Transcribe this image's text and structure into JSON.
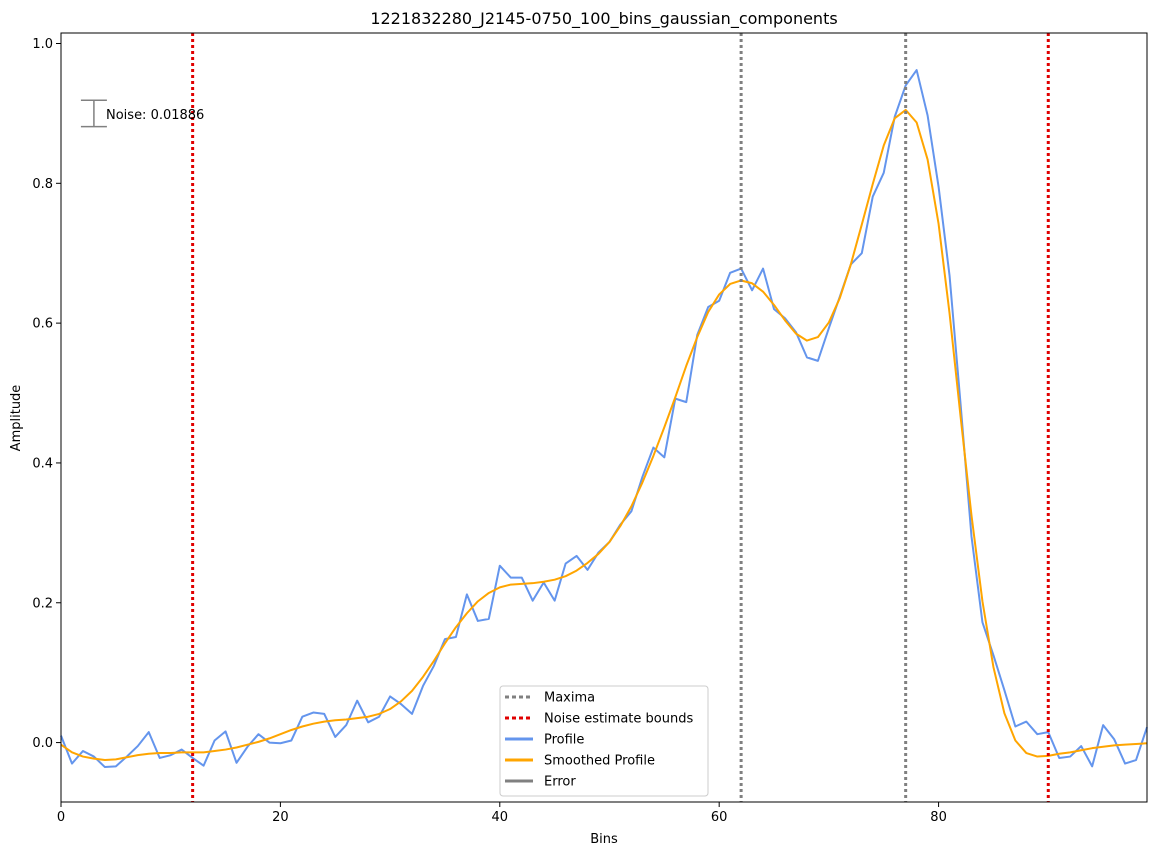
{
  "chart_data": {
    "type": "line",
    "title": "1221832280_J2145-0750_100_bins_gaussian_components",
    "xlabel": "Bins",
    "ylabel": "Amplitude",
    "xlim": [
      0,
      99
    ],
    "ylim": [
      -0.085,
      1.015
    ],
    "grid": false,
    "x_ticks": [
      0,
      20,
      40,
      60,
      80
    ],
    "y_ticks": [
      0.0,
      0.2,
      0.4,
      0.6,
      0.8,
      1.0
    ],
    "x_tick_labels": [
      "0",
      "20",
      "40",
      "60",
      "80"
    ],
    "y_tick_labels": [
      "0.0",
      "0.2",
      "0.4",
      "0.6",
      "0.8",
      "1.0"
    ],
    "noise": {
      "label": "Noise: 0.01886",
      "value": 0.01886,
      "x": 3,
      "center": 0.9
    },
    "vlines": [
      {
        "x": 62,
        "kind": "maxima",
        "color": "#808080"
      },
      {
        "x": 77,
        "kind": "maxima",
        "color": "#808080"
      },
      {
        "x": 12,
        "kind": "noise-bound",
        "color": "#e00000"
      },
      {
        "x": 90,
        "kind": "noise-bound",
        "color": "#e00000"
      }
    ],
    "legend": {
      "position": "bottom-center",
      "entries": [
        {
          "label": "Maxima",
          "color": "#808080",
          "style": "dotted"
        },
        {
          "label": "Noise estimate bounds",
          "color": "#e00000",
          "style": "dotted"
        },
        {
          "label": "Profile",
          "color": "#6495ed",
          "style": "solid"
        },
        {
          "label": "Smoothed Profile",
          "color": "#ffa500",
          "style": "solid"
        },
        {
          "label": "Error",
          "color": "#808080",
          "style": "solid"
        }
      ]
    },
    "series": [
      {
        "name": "Profile",
        "color": "#6495ed",
        "values": [
          0.01,
          -0.03,
          -0.012,
          -0.02,
          -0.035,
          -0.034,
          -0.02,
          -0.005,
          0.015,
          -0.022,
          -0.018,
          -0.01,
          -0.022,
          -0.033,
          0.003,
          0.016,
          -0.029,
          -0.006,
          0.012,
          0.0,
          -0.001,
          0.003,
          0.037,
          0.043,
          0.041,
          0.008,
          0.025,
          0.06,
          0.029,
          0.037,
          0.066,
          0.055,
          0.041,
          0.081,
          0.11,
          0.148,
          0.151,
          0.212,
          0.174,
          0.177,
          0.253,
          0.236,
          0.236,
          0.203,
          0.229,
          0.203,
          0.256,
          0.267,
          0.247,
          0.272,
          0.287,
          0.312,
          0.331,
          0.38,
          0.422,
          0.408,
          0.492,
          0.487,
          0.583,
          0.623,
          0.632,
          0.672,
          0.678,
          0.647,
          0.678,
          0.62,
          0.607,
          0.587,
          0.551,
          0.546,
          0.593,
          0.638,
          0.684,
          0.7,
          0.781,
          0.815,
          0.895,
          0.94,
          0.962,
          0.897,
          0.795,
          0.668,
          0.485,
          0.295,
          0.172,
          0.125,
          0.075,
          0.023,
          0.03,
          0.012,
          0.015,
          -0.022,
          -0.02,
          -0.005,
          -0.034,
          0.025,
          0.005,
          -0.03,
          -0.025,
          0.022
        ]
      },
      {
        "name": "Smoothed Profile",
        "color": "#ffa500",
        "values": [
          -0.003,
          -0.014,
          -0.02,
          -0.023,
          -0.025,
          -0.024,
          -0.021,
          -0.018,
          -0.016,
          -0.015,
          -0.015,
          -0.014,
          -0.014,
          -0.014,
          -0.012,
          -0.01,
          -0.007,
          -0.003,
          0.001,
          0.006,
          0.012,
          0.018,
          0.023,
          0.027,
          0.03,
          0.032,
          0.033,
          0.035,
          0.037,
          0.041,
          0.048,
          0.059,
          0.074,
          0.094,
          0.117,
          0.142,
          0.165,
          0.185,
          0.202,
          0.214,
          0.222,
          0.226,
          0.227,
          0.228,
          0.23,
          0.233,
          0.238,
          0.246,
          0.257,
          0.27,
          0.287,
          0.31,
          0.338,
          0.372,
          0.41,
          0.451,
          0.494,
          0.539,
          0.58,
          0.616,
          0.641,
          0.656,
          0.661,
          0.657,
          0.645,
          0.626,
          0.604,
          0.585,
          0.575,
          0.58,
          0.601,
          0.636,
          0.684,
          0.741,
          0.799,
          0.854,
          0.893,
          0.905,
          0.887,
          0.834,
          0.742,
          0.614,
          0.467,
          0.325,
          0.202,
          0.108,
          0.042,
          0.003,
          -0.015,
          -0.02,
          -0.019,
          -0.016,
          -0.014,
          -0.011,
          -0.008,
          -0.006,
          -0.004,
          -0.003,
          -0.002,
          -0.001
        ]
      }
    ]
  }
}
